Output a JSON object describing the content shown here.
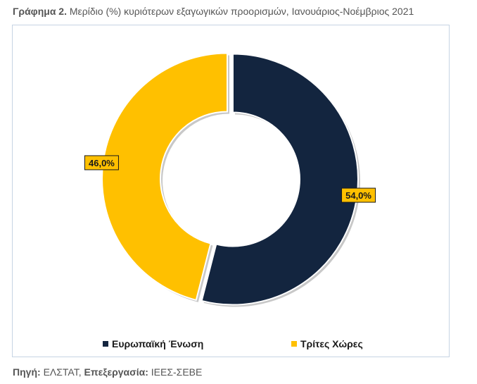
{
  "caption": {
    "label": "Γράφημα 2.",
    "text": "Μερίδιο (%) κυριότερων εξαγωγικών προορισμών, Ιανουάριος-Νοέμβριος 2021"
  },
  "source": {
    "label1": "Πηγή:",
    "value1": "ΕΛΣΤΑΤ,",
    "label2": "Επεξεργασία:",
    "value2": "ΙΕΕΣ-ΣΕΒΕ"
  },
  "chart_data": {
    "type": "pie",
    "variant": "donut",
    "title": "",
    "categories": [
      "Ευρωπαϊκή Ένωση",
      "Τρίτες Χώρες"
    ],
    "values": [
      54.0,
      46.0
    ],
    "value_labels": [
      "54,0%",
      "46,0%"
    ],
    "colors": [
      "#13253f",
      "#ffc000"
    ],
    "legend_position": "bottom"
  }
}
